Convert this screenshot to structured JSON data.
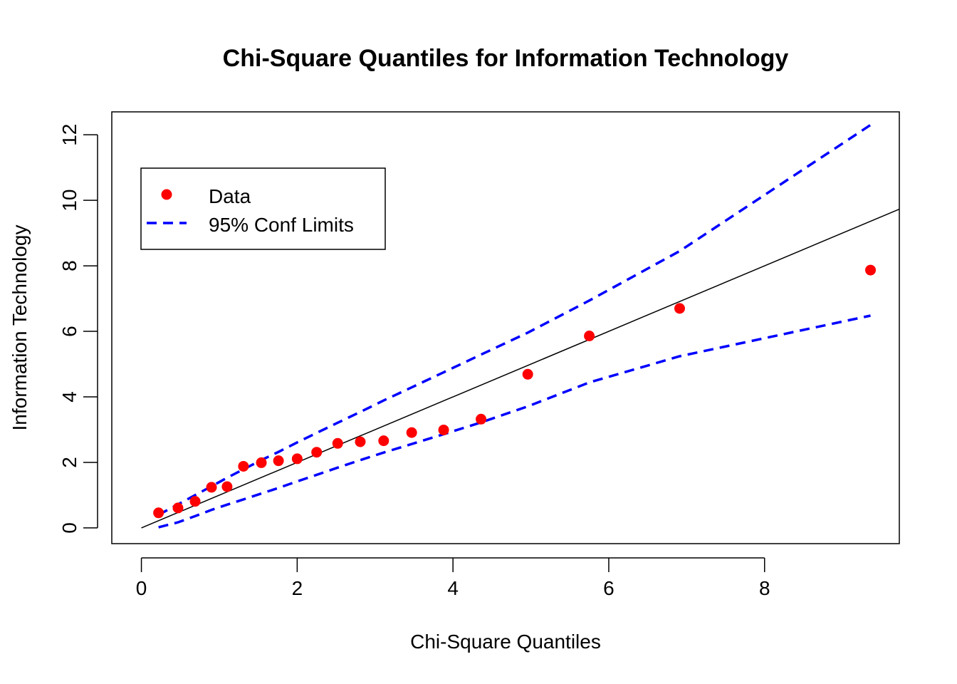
{
  "chart_data": {
    "type": "scatter",
    "title": "Chi-Square Quantiles for Information Technology",
    "xlabel": "Chi-Square Quantiles",
    "ylabel": "Information Technology",
    "xlim": [
      -0.38,
      9.73
    ],
    "ylim": [
      -0.48,
      12.7
    ],
    "xticks": [
      0,
      2,
      4,
      6,
      8
    ],
    "yticks": [
      0,
      2,
      4,
      6,
      8,
      10,
      12
    ],
    "grid": false,
    "legend_position": "top-left",
    "legend": [
      {
        "label": "Data",
        "kind": "point",
        "color": "#ff0000"
      },
      {
        "label": "95% Conf Limits",
        "kind": "dashed-line",
        "color": "#0000ff"
      }
    ],
    "series": [
      {
        "name": "Data",
        "kind": "points",
        "color": "#ff0000",
        "x": [
          0.22,
          0.47,
          0.69,
          0.9,
          1.1,
          1.31,
          1.54,
          1.76,
          2.0,
          2.25,
          2.52,
          2.81,
          3.11,
          3.47,
          3.88,
          4.36,
          4.96,
          5.75,
          6.91,
          9.36
        ],
        "y": [
          0.46,
          0.61,
          0.81,
          1.24,
          1.26,
          1.88,
          1.99,
          2.05,
          2.11,
          2.31,
          2.58,
          2.63,
          2.66,
          2.91,
          2.99,
          3.32,
          4.69,
          5.86,
          6.7,
          7.87
        ]
      },
      {
        "name": "Reference line",
        "kind": "line",
        "color": "#000000",
        "x": [
          0,
          9.73
        ],
        "y": [
          0,
          9.73
        ]
      },
      {
        "name": "95% Conf Limits",
        "kind": "dashed-line",
        "color": "#0000ff",
        "x": [
          0.22,
          0.47,
          0.69,
          0.9,
          1.1,
          1.31,
          1.54,
          1.76,
          2.0,
          2.25,
          2.52,
          2.81,
          3.11,
          3.47,
          3.88,
          4.36,
          4.96,
          5.75,
          6.91,
          9.36
        ],
        "y": [
          0.4,
          0.72,
          1.0,
          1.27,
          1.53,
          1.79,
          2.07,
          2.32,
          2.61,
          2.9,
          3.21,
          3.54,
          3.89,
          4.29,
          4.75,
          5.29,
          5.96,
          6.94,
          8.45,
          12.3
        ]
      },
      {
        "name": "95% Conf Limits",
        "kind": "dashed-line",
        "color": "#0000ff",
        "x": [
          0.22,
          0.47,
          0.69,
          0.9,
          1.1,
          1.31,
          1.54,
          1.76,
          2.0,
          2.25,
          2.52,
          2.81,
          3.11,
          3.47,
          3.88,
          4.36,
          4.96,
          5.75,
          6.91,
          9.36
        ],
        "y": [
          0.02,
          0.17,
          0.36,
          0.55,
          0.71,
          0.87,
          1.05,
          1.22,
          1.42,
          1.62,
          1.84,
          2.07,
          2.3,
          2.56,
          2.86,
          3.22,
          3.71,
          4.44,
          5.24,
          6.48
        ]
      }
    ]
  }
}
